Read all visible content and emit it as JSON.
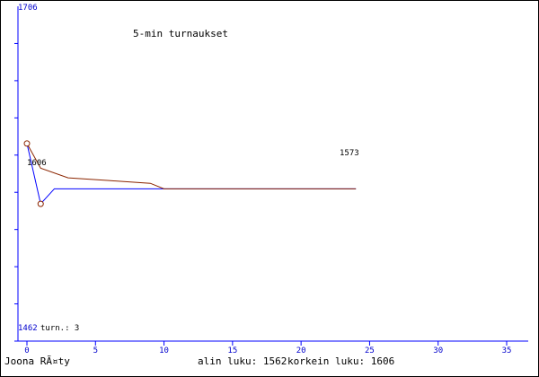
{
  "chart_data": {
    "type": "line",
    "title": "5-min turnaukset",
    "xlabel": "",
    "ylabel": "",
    "xlim": [
      0,
      35
    ],
    "ylim": [
      1462,
      1706
    ],
    "x_ticks": [
      0,
      5,
      10,
      15,
      20,
      25,
      30,
      35
    ],
    "y_tick_labels": {
      "top": "1706",
      "bottom": "1462"
    },
    "grid": false,
    "series": [
      {
        "color": "#0000ff",
        "points": [
          [
            0,
            1606
          ],
          [
            1,
            1562
          ],
          [
            2,
            1573
          ],
          [
            10,
            1573
          ],
          [
            24,
            1573
          ]
        ]
      },
      {
        "color": "#8b2500",
        "points": [
          [
            0,
            1606
          ],
          [
            1,
            1588
          ],
          [
            3,
            1581
          ],
          [
            6,
            1579
          ],
          [
            9,
            1577
          ],
          [
            10,
            1573
          ],
          [
            24,
            1573
          ]
        ]
      }
    ],
    "markers": [
      [
        0,
        1606
      ],
      [
        1,
        1562
      ]
    ],
    "annotations": {
      "start_value": "1606",
      "end_value": "1573",
      "turns": "turn.: 3"
    },
    "colors": {
      "axis": "#0000ff",
      "axis_label": "#0000cd"
    }
  },
  "footer": {
    "author": "Joona RÃ¤ty",
    "min_label": "alin luku: 1562",
    "max_label": "korkein luku: 1606"
  }
}
